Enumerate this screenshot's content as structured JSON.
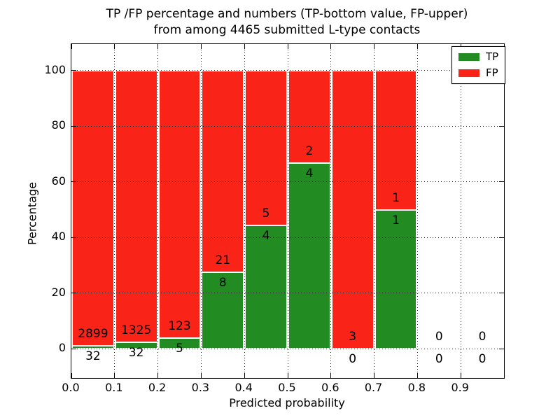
{
  "chart_data": {
    "type": "bar",
    "stacked": true,
    "title": "TP /FP percentage and numbers (TP-bottom value, FP-upper)",
    "subtitle": "from among 4465 submitted L-type contacts",
    "xlabel": "Predicted probability",
    "ylabel": "Percentage",
    "xlim": [
      0.0,
      1.0
    ],
    "ylim": [
      -10.5,
      109.5
    ],
    "xticks": [
      0.0,
      0.1,
      0.2,
      0.3,
      0.4,
      0.5,
      0.6,
      0.7,
      0.8,
      0.9
    ],
    "xtick_labels": [
      "0.0",
      "0.1",
      "0.2",
      "0.3",
      "0.4",
      "0.5",
      "0.6",
      "0.7",
      "0.8",
      "0.9"
    ],
    "yticks": [
      0,
      20,
      40,
      60,
      80,
      100
    ],
    "ytick_labels": [
      "0",
      "20",
      "40",
      "60",
      "80",
      "100"
    ],
    "grid": "dotted",
    "bar_width": 0.1,
    "legend": {
      "position": "upper right",
      "entries": [
        {
          "label": "TP",
          "color": "#228b22"
        },
        {
          "label": "FP",
          "color": "#fa2318"
        }
      ]
    },
    "colors": {
      "tp": "#228b22",
      "fp": "#fa2318",
      "bar_edge": "#ffffff",
      "text": "#000000"
    },
    "bins": [
      {
        "x_range": [
          0.0,
          0.1
        ],
        "tp": 32,
        "fp": 2899,
        "tp_pct": 1.09
      },
      {
        "x_range": [
          0.1,
          0.2
        ],
        "tp": 32,
        "fp": 1325,
        "tp_pct": 2.36
      },
      {
        "x_range": [
          0.2,
          0.3
        ],
        "tp": 5,
        "fp": 123,
        "tp_pct": 3.91
      },
      {
        "x_range": [
          0.3,
          0.4
        ],
        "tp": 8,
        "fp": 21,
        "tp_pct": 27.59
      },
      {
        "x_range": [
          0.4,
          0.5
        ],
        "tp": 4,
        "fp": 5,
        "tp_pct": 44.44
      },
      {
        "x_range": [
          0.5,
          0.6
        ],
        "tp": 4,
        "fp": 2,
        "tp_pct": 66.67
      },
      {
        "x_range": [
          0.6,
          0.7
        ],
        "tp": 0,
        "fp": 3,
        "tp_pct": 0.0
      },
      {
        "x_range": [
          0.7,
          0.8
        ],
        "tp": 1,
        "fp": 1,
        "tp_pct": 50.0
      },
      {
        "x_range": [
          0.8,
          0.9
        ],
        "tp": 0,
        "fp": 0,
        "tp_pct": null
      },
      {
        "x_range": [
          0.9,
          1.0
        ],
        "tp": 0,
        "fp": 0,
        "tp_pct": null
      }
    ]
  }
}
